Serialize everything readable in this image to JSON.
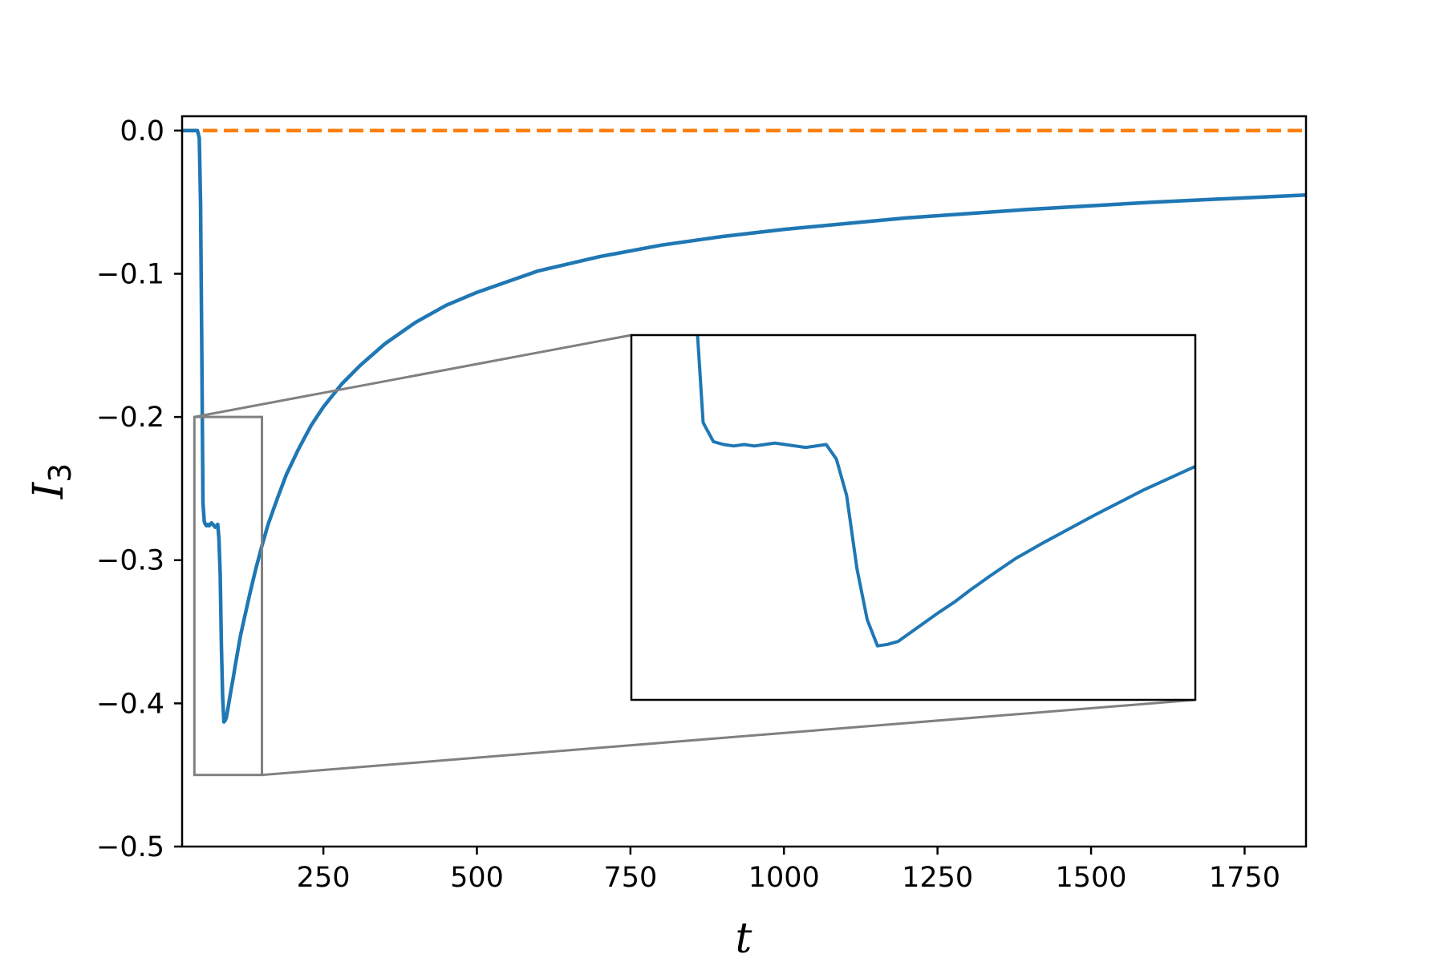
{
  "chart_data": {
    "type": "line",
    "title": "",
    "xlabel": "t",
    "ylabel": {
      "main": "I",
      "sub": "3"
    },
    "xlim": [
      20,
      1850
    ],
    "ylim": [
      -0.5,
      0.01
    ],
    "xticks": [
      250,
      500,
      750,
      1000,
      1250,
      1500,
      1750
    ],
    "yticks": [
      0.0,
      -0.1,
      -0.2,
      -0.3,
      -0.4,
      -0.5
    ],
    "xtick_labels": [
      "250",
      "500",
      "750",
      "1000",
      "1250",
      "1500",
      "1750"
    ],
    "ytick_labels": [
      "0.0",
      "−0.1",
      "−0.2",
      "−0.3",
      "−0.4",
      "−0.5"
    ],
    "grid": false,
    "colors": {
      "series": "#1f77b4",
      "reference": "#ff7f0e",
      "zoom_box": "#808080"
    },
    "series": [
      {
        "style": "solid",
        "x": [
          20,
          40,
          45,
          48,
          50,
          52,
          54,
          56,
          58,
          60,
          62,
          64,
          66,
          68,
          70,
          72,
          74,
          76,
          78,
          80,
          82,
          84,
          86,
          88,
          90,
          92,
          94,
          96,
          98,
          100,
          103,
          106,
          110,
          115,
          120,
          130,
          140,
          150,
          160,
          175,
          190,
          210,
          230,
          250,
          280,
          310,
          350,
          400,
          450,
          500,
          600,
          700,
          800,
          900,
          1000,
          1200,
          1400,
          1600,
          1850
        ],
        "y": [
          0.0,
          0.0,
          0.0,
          -0.005,
          -0.05,
          -0.15,
          -0.26,
          -0.273,
          -0.275,
          -0.276,
          -0.275,
          -0.276,
          -0.275,
          -0.274,
          -0.275,
          -0.276,
          -0.277,
          -0.276,
          -0.275,
          -0.285,
          -0.31,
          -0.36,
          -0.395,
          -0.413,
          -0.412,
          -0.41,
          -0.405,
          -0.4,
          -0.395,
          -0.39,
          -0.383,
          -0.375,
          -0.365,
          -0.353,
          -0.343,
          -0.324,
          -0.306,
          -0.29,
          -0.275,
          -0.257,
          -0.24,
          -0.222,
          -0.206,
          -0.193,
          -0.177,
          -0.164,
          -0.149,
          -0.134,
          -0.122,
          -0.113,
          -0.098,
          -0.088,
          -0.08,
          -0.074,
          -0.069,
          -0.061,
          -0.055,
          -0.05,
          -0.045
        ]
      },
      {
        "style": "dashed",
        "x": [
          20,
          1850
        ],
        "y": [
          0.0,
          0.0
        ]
      }
    ],
    "inset": {
      "xlim": [
        40,
        150
      ],
      "ylim": [
        -0.45,
        -0.2
      ],
      "zoom_box": {
        "x": [
          40,
          150
        ],
        "y": [
          -0.45,
          -0.2
        ]
      }
    }
  }
}
